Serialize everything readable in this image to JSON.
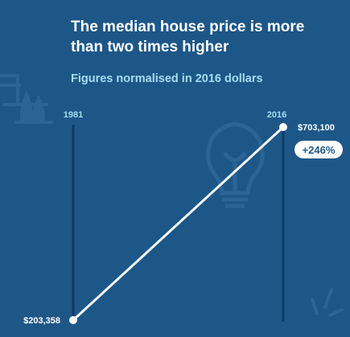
{
  "header": {
    "title": "The median house price is more than two times higher",
    "subtitle": "Figures normalised in 2016 dollars"
  },
  "chart_data": {
    "type": "line",
    "title": "The median house price is more than two times higher",
    "subtitle": "Figures normalised in 2016 dollars",
    "x": [
      "1981",
      "2016"
    ],
    "series": [
      {
        "values": [
          203358,
          703100
        ]
      }
    ],
    "value_labels": [
      "$203,358",
      "$703,100"
    ],
    "change_label": "+246%",
    "ylim": [
      203358,
      703100
    ],
    "grid": false,
    "legend": "none"
  },
  "colors": {
    "background": "#1d5788",
    "line": "#ffffff",
    "axis": "#0d3a64",
    "label_accent": "#a6dcf2",
    "decor": "#2b6596"
  },
  "icons": [
    "house-trees-icon",
    "lightbulb-icon",
    "sparkle-icon"
  ]
}
